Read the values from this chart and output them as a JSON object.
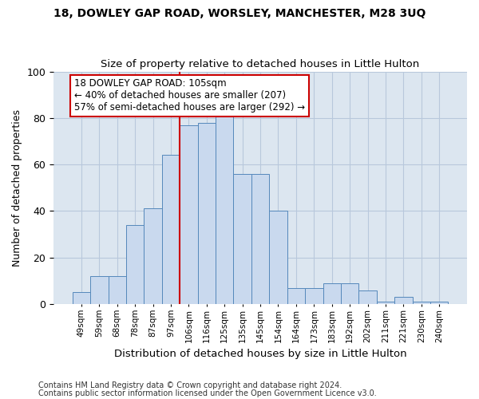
{
  "title1": "18, DOWLEY GAP ROAD, WORSLEY, MANCHESTER, M28 3UQ",
  "title2": "Size of property relative to detached houses in Little Hulton",
  "xlabel": "Distribution of detached houses by size in Little Hulton",
  "ylabel": "Number of detached properties",
  "footnote1": "Contains HM Land Registry data © Crown copyright and database right 2024.",
  "footnote2": "Contains public sector information licensed under the Open Government Licence v3.0.",
  "categories": [
    "49sqm",
    "59sqm",
    "68sqm",
    "78sqm",
    "87sqm",
    "97sqm",
    "106sqm",
    "116sqm",
    "125sqm",
    "135sqm",
    "145sqm",
    "154sqm",
    "164sqm",
    "173sqm",
    "183sqm",
    "192sqm",
    "202sqm",
    "211sqm",
    "221sqm",
    "230sqm",
    "240sqm"
  ],
  "values": [
    5,
    12,
    12,
    34,
    41,
    64,
    77,
    78,
    84,
    56,
    56,
    40,
    7,
    7,
    9,
    9,
    6,
    1,
    3,
    1,
    1
  ],
  "bar_color": "#c9d9ee",
  "bar_edge_color": "#5588bb",
  "highlight_line_index": 6,
  "highlight_color": "#cc0000",
  "annotation_line1": "18 DOWLEY GAP ROAD: 105sqm",
  "annotation_line2": "← 40% of detached houses are smaller (207)",
  "annotation_line3": "57% of semi-detached houses are larger (292) →",
  "annotation_box_color": "#ffffff",
  "annotation_box_edge": "#cc0000",
  "ylim": [
    0,
    100
  ],
  "yticks": [
    0,
    20,
    40,
    60,
    80,
    100
  ],
  "background_color": "#ffffff",
  "plot_bg_color": "#dce6f0",
  "grid_color": "#b8c8dc"
}
